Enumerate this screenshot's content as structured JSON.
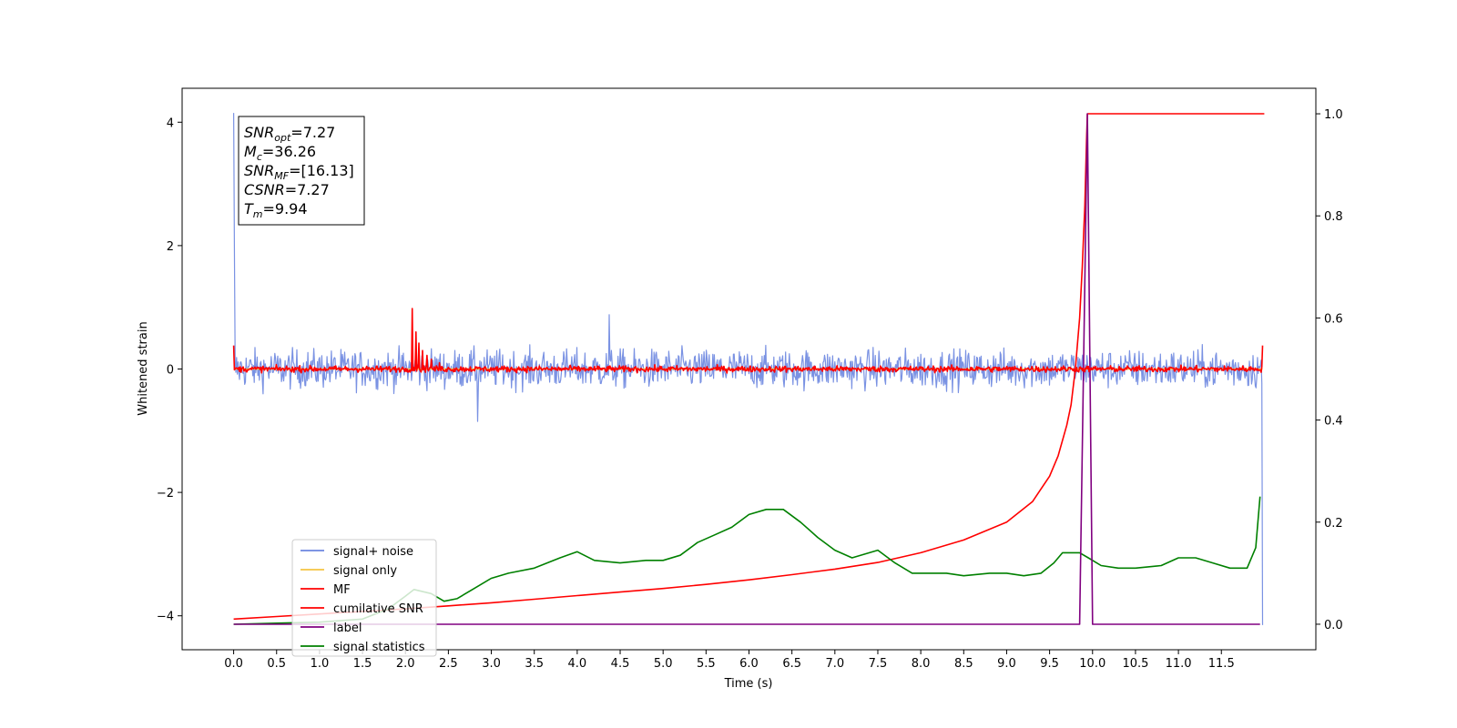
{
  "chart_data": {
    "type": "line",
    "title": "",
    "xlabel": "Time (s)",
    "ylabel": "Whitened strain",
    "xlim": [
      -0.6,
      12.6
    ],
    "ylim": [
      -4.55,
      4.55
    ],
    "ylim_right": [
      -0.05,
      1.05
    ],
    "x_ticks": [
      "0.0",
      "0.5",
      "1.0",
      "1.5",
      "2.0",
      "2.5",
      "3.0",
      "3.5",
      "4.0",
      "4.5",
      "5.0",
      "5.5",
      "6.0",
      "6.5",
      "7.0",
      "7.5",
      "8.0",
      "8.5",
      "9.0",
      "9.5",
      "10.0",
      "10.5",
      "11.0",
      "11.5"
    ],
    "y_ticks_left": [
      "4",
      "2",
      "0",
      "−2",
      "−4"
    ],
    "y_ticks_right": [
      "1.0",
      "0.8",
      "0.6",
      "0.4",
      "0.2",
      "0.0"
    ],
    "grid": false,
    "legend_position": "lower-left",
    "annotation": {
      "lines": [
        {
          "base": "SNR",
          "sub": "opt",
          "value": "=7.27"
        },
        {
          "base": "M",
          "sub": "c",
          "value": "=36.26"
        },
        {
          "base": "SNR",
          "sub": "MF",
          "value": "=[16.13]"
        },
        {
          "base": "CSNR",
          "sub": "",
          "value": "=7.27"
        },
        {
          "base": "T",
          "sub": "m",
          "value": "=9.94"
        }
      ]
    },
    "series": [
      {
        "name": "signal+ noise",
        "axis": "left",
        "color": "#6b86e0",
        "kind": "noise",
        "amplitude": 0.22,
        "x_range": [
          0.0,
          11.98
        ],
        "peaks": [
          [
            0.0,
            4.15
          ],
          [
            0.005,
            2.0
          ],
          [
            4.37,
            0.88
          ],
          [
            2.84,
            -0.85
          ],
          [
            11.98,
            -4.15
          ]
        ]
      },
      {
        "name": "signal only",
        "axis": "left",
        "color": "#f5c542",
        "x": [
          0.0,
          11.98
        ],
        "y": [
          0.0,
          0.0
        ]
      },
      {
        "name": "MF",
        "axis": "left",
        "color": "#ff0000",
        "kind": "noise",
        "amplitude": 0.035,
        "x_range": [
          0.0,
          11.98
        ],
        "peaks": [
          [
            2.08,
            0.98
          ],
          [
            2.12,
            0.6
          ],
          [
            2.16,
            0.42
          ],
          [
            2.2,
            0.3
          ],
          [
            2.25,
            0.22
          ],
          [
            2.3,
            0.16
          ],
          [
            2.4,
            0.1
          ],
          [
            0.0,
            0.38
          ],
          [
            11.98,
            0.38
          ]
        ]
      },
      {
        "name": "cumilative SNR",
        "axis": "right",
        "color": "#ff0000",
        "x": [
          0.0,
          0.5,
          1.0,
          1.5,
          2.0,
          2.5,
          3.0,
          3.5,
          4.0,
          4.5,
          5.0,
          5.5,
          6.0,
          6.5,
          7.0,
          7.5,
          8.0,
          8.5,
          9.0,
          9.3,
          9.5,
          9.6,
          9.7,
          9.75,
          9.8,
          9.85,
          9.88,
          9.91,
          9.93,
          9.94,
          10.5,
          11.0,
          11.5,
          12.0
        ],
        "y": [
          0.01,
          0.015,
          0.02,
          0.025,
          0.03,
          0.036,
          0.042,
          0.049,
          0.056,
          0.063,
          0.07,
          0.078,
          0.087,
          0.097,
          0.108,
          0.121,
          0.14,
          0.165,
          0.2,
          0.24,
          0.29,
          0.33,
          0.39,
          0.43,
          0.5,
          0.6,
          0.7,
          0.82,
          0.95,
          1.0,
          1.0,
          1.0,
          1.0,
          1.0
        ]
      },
      {
        "name": "label",
        "axis": "right",
        "color": "#800080",
        "x": [
          0.0,
          9.85,
          9.94,
          10.0,
          11.95
        ],
        "y": [
          0.0,
          0.0,
          1.0,
          0.0,
          0.0
        ]
      },
      {
        "name": "signal statistics",
        "axis": "right",
        "color": "#008000",
        "x": [
          0.0,
          0.5,
          1.0,
          1.5,
          1.8,
          2.0,
          2.1,
          2.3,
          2.45,
          2.6,
          2.8,
          3.0,
          3.2,
          3.5,
          3.8,
          4.0,
          4.2,
          4.5,
          4.8,
          5.0,
          5.2,
          5.4,
          5.6,
          5.8,
          6.0,
          6.2,
          6.4,
          6.6,
          6.8,
          7.0,
          7.2,
          7.5,
          7.7,
          7.9,
          8.1,
          8.3,
          8.5,
          8.8,
          9.0,
          9.2,
          9.4,
          9.55,
          9.65,
          9.85,
          9.95,
          10.1,
          10.3,
          10.5,
          10.8,
          11.0,
          11.2,
          11.4,
          11.6,
          11.8,
          11.9,
          11.95
        ],
        "y": [
          0.0,
          0.002,
          0.004,
          0.01,
          0.03,
          0.055,
          0.068,
          0.06,
          0.045,
          0.05,
          0.07,
          0.09,
          0.1,
          0.11,
          0.13,
          0.142,
          0.125,
          0.12,
          0.125,
          0.125,
          0.135,
          0.16,
          0.175,
          0.19,
          0.215,
          0.225,
          0.225,
          0.2,
          0.17,
          0.145,
          0.13,
          0.145,
          0.12,
          0.1,
          0.1,
          0.1,
          0.095,
          0.1,
          0.1,
          0.095,
          0.1,
          0.12,
          0.14,
          0.14,
          0.13,
          0.115,
          0.11,
          0.11,
          0.115,
          0.13,
          0.13,
          0.12,
          0.11,
          0.11,
          0.15,
          0.25
        ]
      }
    ]
  }
}
